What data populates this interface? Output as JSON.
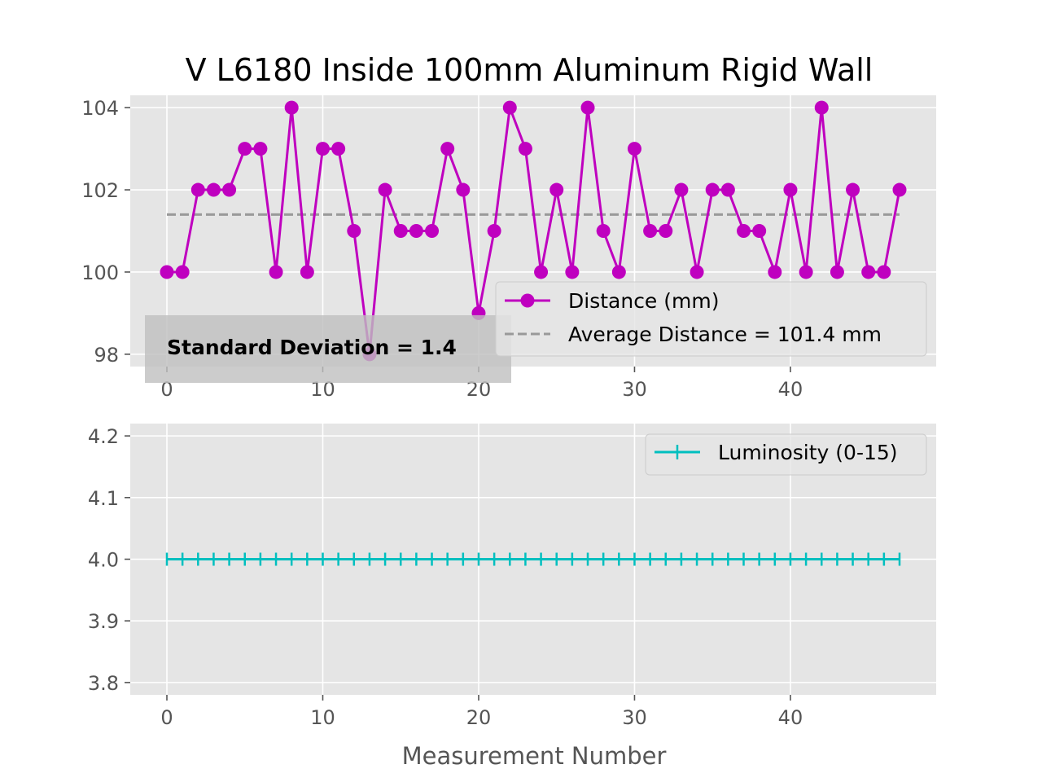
{
  "colors": {
    "background": "#ffffff",
    "axes_face": "#e5e5e5",
    "grid": "#ffffff",
    "distance": "#bf00bf",
    "average": "#999999",
    "luminosity": "#00bfbf",
    "annotation_box": "#bfbfbf"
  },
  "chart_data": [
    {
      "type": "line",
      "title": "V L6180 Inside 100mm Aluminum Rigid Wall",
      "xlabel": "",
      "ylabel": "",
      "xlim": [
        -2.35,
        49.35
      ],
      "ylim": [
        97.7,
        104.3
      ],
      "xticks": [
        "0",
        "10",
        "20",
        "30",
        "40"
      ],
      "yticks": [
        "98",
        "100",
        "102",
        "104"
      ],
      "grid": true,
      "legend": "lower-right",
      "series": [
        {
          "name": "Distance (mm)",
          "marker": "circle",
          "x": [
            0,
            1,
            2,
            3,
            4,
            5,
            6,
            7,
            8,
            9,
            10,
            11,
            12,
            13,
            14,
            15,
            16,
            17,
            18,
            19,
            20,
            21,
            22,
            23,
            24,
            25,
            26,
            27,
            28,
            29,
            30,
            31,
            32,
            33,
            34,
            35,
            36,
            37,
            38,
            39,
            40,
            41,
            42,
            43,
            44,
            45,
            46,
            47
          ],
          "values": [
            100,
            100,
            102,
            102,
            102,
            103,
            103,
            100,
            104,
            100,
            103,
            103,
            101,
            98,
            102,
            101,
            101,
            101,
            103,
            102,
            99,
            101,
            104,
            103,
            100,
            102,
            100,
            104,
            101,
            100,
            103,
            101,
            101,
            102,
            100,
            102,
            102,
            101,
            101,
            100,
            102,
            100,
            104,
            100,
            102,
            100,
            100,
            102
          ]
        },
        {
          "name": "Average Distance = 101.4 mm",
          "style": "dashed",
          "x": [
            0,
            47
          ],
          "values": [
            101.4,
            101.4
          ]
        }
      ],
      "annotation": "Standard Deviation = 1.4"
    },
    {
      "type": "line",
      "title": "",
      "xlabel": "Measurement Number",
      "ylabel": "",
      "xlim": [
        -2.35,
        49.35
      ],
      "ylim": [
        3.78,
        4.22
      ],
      "xticks": [
        "0",
        "10",
        "20",
        "30",
        "40"
      ],
      "yticks": [
        "3.8",
        "3.9",
        "4.0",
        "4.1",
        "4.2"
      ],
      "grid": true,
      "legend": "top-right",
      "series": [
        {
          "name": "Luminosity (0-15)",
          "marker": "plus",
          "x": [
            0,
            1,
            2,
            3,
            4,
            5,
            6,
            7,
            8,
            9,
            10,
            11,
            12,
            13,
            14,
            15,
            16,
            17,
            18,
            19,
            20,
            21,
            22,
            23,
            24,
            25,
            26,
            27,
            28,
            29,
            30,
            31,
            32,
            33,
            34,
            35,
            36,
            37,
            38,
            39,
            40,
            41,
            42,
            43,
            44,
            45,
            46,
            47
          ],
          "values": [
            4,
            4,
            4,
            4,
            4,
            4,
            4,
            4,
            4,
            4,
            4,
            4,
            4,
            4,
            4,
            4,
            4,
            4,
            4,
            4,
            4,
            4,
            4,
            4,
            4,
            4,
            4,
            4,
            4,
            4,
            4,
            4,
            4,
            4,
            4,
            4,
            4,
            4,
            4,
            4,
            4,
            4,
            4,
            4,
            4,
            4,
            4,
            4
          ]
        }
      ]
    }
  ]
}
